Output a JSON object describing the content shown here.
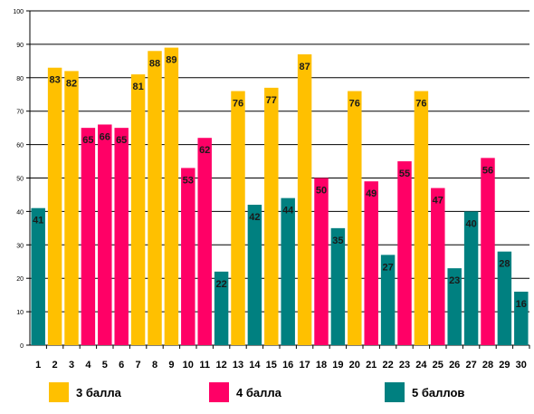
{
  "chart_data": {
    "type": "bar",
    "title": "",
    "xlabel": "",
    "ylabel": "",
    "ylim": [
      0,
      100
    ],
    "yticks": [
      0,
      10,
      20,
      30,
      40,
      50,
      60,
      70,
      80,
      90,
      100
    ],
    "grid": true,
    "legend_position": "bottom",
    "categories": [
      "1",
      "2",
      "3",
      "4",
      "5",
      "6",
      "7",
      "8",
      "9",
      "10",
      "11",
      "12",
      "13",
      "14",
      "15",
      "16",
      "17",
      "18",
      "19",
      "20",
      "21",
      "22",
      "23",
      "24",
      "25",
      "26",
      "27",
      "28",
      "29",
      "30"
    ],
    "values": [
      41,
      83,
      82,
      65,
      66,
      65,
      81,
      88,
      89,
      53,
      62,
      22,
      76,
      42,
      77,
      44,
      87,
      50,
      35,
      76,
      49,
      27,
      55,
      76,
      47,
      23,
      40,
      56,
      28,
      16
    ],
    "groups": [
      "5 баллов",
      "3 балла",
      "3 балла",
      "4 балла",
      "4 балла",
      "4 балла",
      "3 балла",
      "3 балла",
      "3 балла",
      "4 балла",
      "4 балла",
      "5 баллов",
      "3 балла",
      "5 баллов",
      "3 балла",
      "5 баллов",
      "3 балла",
      "4 балла",
      "5 баллов",
      "3 балла",
      "4 балла",
      "5 баллов",
      "4 балла",
      "3 балла",
      "4 балла",
      "5 баллов",
      "5 баллов",
      "4 балла",
      "5 баллов",
      "5 баллов"
    ],
    "series": [
      {
        "name": "3 балла",
        "color": "#FFC000"
      },
      {
        "name": "4 балла",
        "color": "#FF0066"
      },
      {
        "name": "5 баллов",
        "color": "#008080"
      }
    ]
  }
}
